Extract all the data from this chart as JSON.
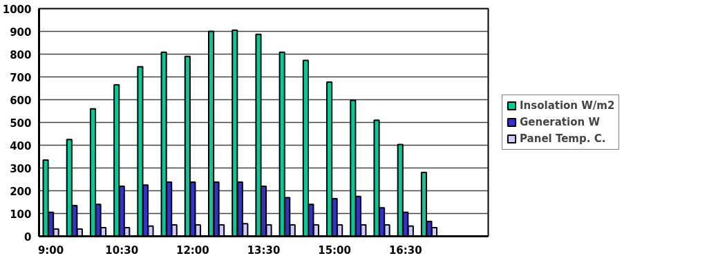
{
  "chart_data": {
    "type": "bar",
    "categories": [
      "9:00",
      null,
      null,
      "10:30",
      null,
      null,
      "12:00",
      null,
      null,
      "13:30",
      null,
      null,
      "15:00",
      null,
      null,
      "16:30",
      null,
      null,
      null
    ],
    "series": [
      {
        "name": "Insolation W/m2",
        "color": "#00cc99",
        "values": [
          335,
          425,
          560,
          665,
          745,
          808,
          790,
          900,
          905,
          887,
          808,
          773,
          677,
          597,
          510,
          403,
          280,
          null,
          null
        ]
      },
      {
        "name": "Generation W",
        "color": "#3333cc",
        "values": [
          105,
          135,
          140,
          220,
          225,
          238,
          238,
          238,
          238,
          220,
          170,
          140,
          165,
          175,
          125,
          105,
          65,
          null,
          null
        ]
      },
      {
        "name": "Panel Temp. C.",
        "color": "#ccccff",
        "values": [
          32,
          32,
          38,
          38,
          45,
          50,
          50,
          50,
          55,
          50,
          50,
          50,
          50,
          50,
          50,
          45,
          38,
          null,
          null
        ]
      }
    ],
    "ylim": [
      0,
      1000
    ],
    "yticks": [
      0,
      100,
      200,
      300,
      400,
      500,
      600,
      700,
      800,
      900,
      1000
    ],
    "grid": "y",
    "legend": "right"
  }
}
